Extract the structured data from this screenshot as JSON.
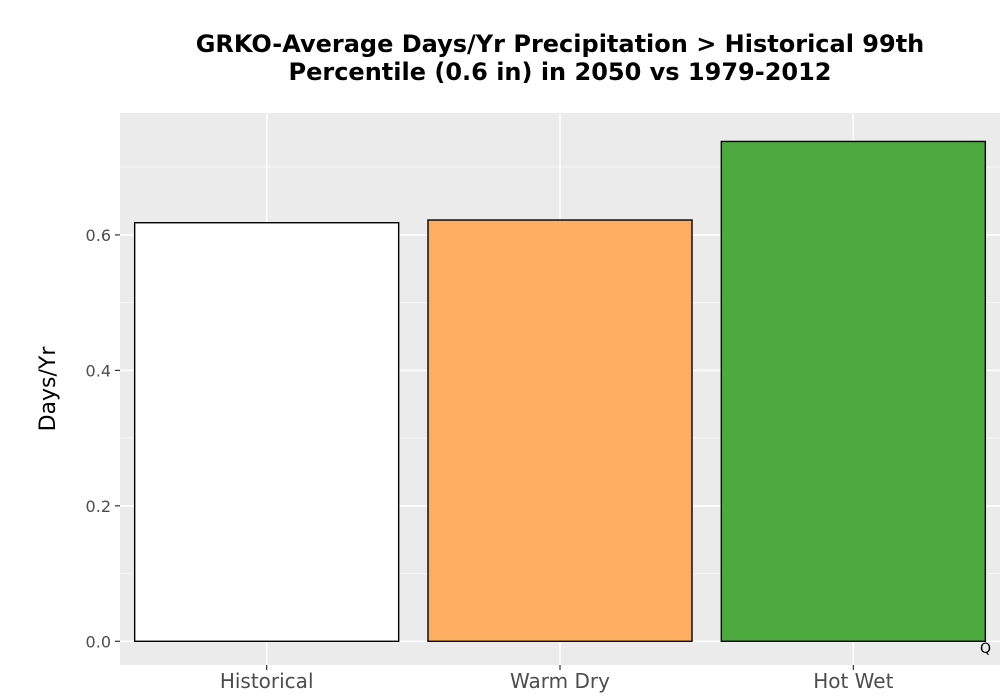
{
  "chart_data": {
    "type": "bar",
    "title_lines": [
      "GRKO-Average Days/Yr Precipitation > Historical 99th",
      "Percentile (0.6 in) in 2050 vs 1979-2012"
    ],
    "xlabel": "",
    "ylabel": "Days/Yr",
    "categories": [
      "Historical",
      "Warm Dry",
      "Hot Wet"
    ],
    "values": [
      0.618,
      0.622,
      0.738
    ],
    "bar_colors": [
      "#ffffff",
      "#fdae61",
      "#4daa3f"
    ],
    "ylim": [
      -0.035,
      0.78
    ],
    "yticks": [
      0.0,
      0.2,
      0.4,
      0.6
    ],
    "ytick_labels": [
      "0.0",
      "0.2",
      "0.4",
      "0.6"
    ],
    "grid": true,
    "panel_background": "#ebebeb",
    "corner_mark": "Q"
  }
}
